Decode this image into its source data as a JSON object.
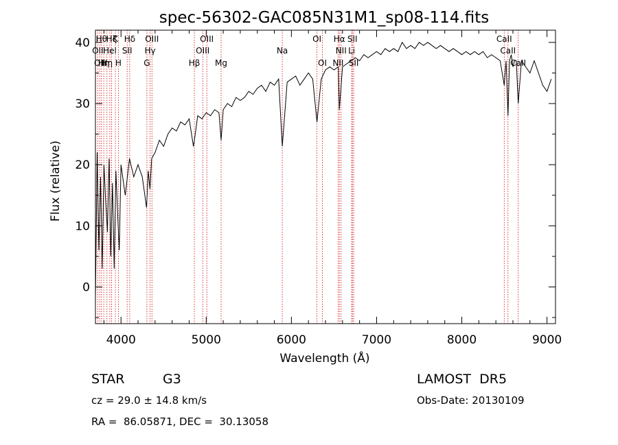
{
  "chart_data": {
    "type": "line",
    "title": "spec-56302-GAC085N31M1_sp08-114.fits",
    "xlabel": "Wavelength (Å)",
    "ylabel": "Flux (relative)",
    "xlim": [
      3700,
      9100
    ],
    "ylim": [
      -6,
      42
    ],
    "x_ticks": [
      "4000",
      "5000",
      "6000",
      "7000",
      "8000",
      "9000"
    ],
    "y_ticks": [
      "0",
      "10",
      "20",
      "30",
      "40"
    ],
    "grid": false,
    "series": [
      {
        "x": [
          3700,
          3720,
          3740,
          3760,
          3780,
          3800,
          3820,
          3840,
          3860,
          3880,
          3900,
          3920,
          3940,
          3960,
          3980,
          4000,
          4050,
          4100,
          4150,
          4200,
          4250,
          4300,
          4320,
          4340,
          4360,
          4400,
          4450,
          4500,
          4550,
          4600,
          4650,
          4700,
          4750,
          4800,
          4850,
          4861,
          4900,
          4950,
          5000,
          5050,
          5100,
          5150,
          5175,
          5200,
          5250,
          5300,
          5350,
          5400,
          5450,
          5500,
          5550,
          5600,
          5650,
          5700,
          5750,
          5800,
          5850,
          5893,
          5950,
          6000,
          6050,
          6100,
          6150,
          6200,
          6250,
          6300,
          6350,
          6400,
          6450,
          6500,
          6550,
          6563,
          6600,
          6650,
          6700,
          6750,
          6800,
          6850,
          6900,
          6950,
          7000,
          7050,
          7100,
          7150,
          7200,
          7250,
          7300,
          7350,
          7400,
          7450,
          7500,
          7550,
          7600,
          7650,
          7700,
          7750,
          7800,
          7850,
          7900,
          7950,
          8000,
          8050,
          8100,
          8150,
          8200,
          8250,
          8300,
          8350,
          8400,
          8450,
          8498,
          8520,
          8542,
          8560,
          8580,
          8600,
          8620,
          8640,
          8662,
          8700,
          8750,
          8800,
          8850,
          8900,
          8950,
          9000,
          9050
        ],
        "y": [
          -2,
          22,
          6,
          18,
          3,
          20,
          14,
          9,
          21,
          5,
          17,
          3,
          19,
          12,
          6,
          20,
          15,
          21,
          18,
          20,
          18,
          13,
          19,
          16,
          21,
          22,
          24,
          23,
          25,
          26,
          25.5,
          27,
          26.5,
          27.5,
          23,
          24,
          28,
          27.5,
          28.5,
          28,
          29,
          28.5,
          24,
          29,
          30,
          29.5,
          31,
          30.5,
          31,
          32,
          31.5,
          32.5,
          33,
          32,
          33.5,
          33,
          34,
          23,
          33.5,
          34,
          34.5,
          33,
          34,
          35,
          34,
          27,
          34,
          35.5,
          36,
          35.5,
          36,
          29,
          36,
          36.5,
          37,
          37.5,
          37,
          38,
          37.5,
          38,
          38.5,
          38,
          39,
          38.5,
          39,
          38.5,
          40,
          39,
          39.5,
          39,
          40,
          39.5,
          40,
          39.5,
          39,
          39.5,
          39,
          38.5,
          39,
          38.5,
          38,
          38.5,
          38,
          38.5,
          38,
          38.5,
          37.5,
          38,
          37.5,
          37,
          33,
          37,
          28,
          37,
          38,
          36,
          37,
          37,
          30,
          37,
          36,
          35,
          37,
          35,
          33,
          32,
          34
        ]
      }
    ],
    "line_markers": [
      {
        "wl": 3727,
        "label": "OII",
        "row": 1
      },
      {
        "wl": 3750,
        "label": "OII",
        "row": 2
      },
      {
        "wl": 3771,
        "label": "Hθ",
        "row": 0
      },
      {
        "wl": 3798,
        "label": "Hη",
        "row": 2
      },
      {
        "wl": 3835,
        "label": "Hη",
        "row": 2
      },
      {
        "wl": 3869,
        "label": "Hel",
        "row": 1
      },
      {
        "wl": 3889,
        "label": "Hζ",
        "row": 0
      },
      {
        "wl": 3934,
        "label": "K",
        "row": 0
      },
      {
        "wl": 3969,
        "label": "H",
        "row": 2
      },
      {
        "wl": 4072,
        "label": "SII",
        "row": 1
      },
      {
        "wl": 4102,
        "label": "Hδ",
        "row": 0
      },
      {
        "wl": 4304,
        "label": "G",
        "row": 2
      },
      {
        "wl": 4341,
        "label": "Hγ",
        "row": 1
      },
      {
        "wl": 4363,
        "label": "OIII",
        "row": 0
      },
      {
        "wl": 4861,
        "label": "Hβ",
        "row": 2
      },
      {
        "wl": 4959,
        "label": "OIII",
        "row": 1
      },
      {
        "wl": 5007,
        "label": "OIII",
        "row": 0
      },
      {
        "wl": 5175,
        "label": "Mg",
        "row": 2
      },
      {
        "wl": 5893,
        "label": "Na",
        "row": 1
      },
      {
        "wl": 6300,
        "label": "OI",
        "row": 0
      },
      {
        "wl": 6364,
        "label": "OI",
        "row": 2
      },
      {
        "wl": 6548,
        "label": "NII",
        "row": 2
      },
      {
        "wl": 6563,
        "label": "Hα",
        "row": 0
      },
      {
        "wl": 6583,
        "label": "NII",
        "row": 1
      },
      {
        "wl": 6707,
        "label": "Li",
        "row": 1
      },
      {
        "wl": 6716,
        "label": "SII",
        "row": 0
      },
      {
        "wl": 6731,
        "label": "SII",
        "row": 2
      },
      {
        "wl": 8498,
        "label": "CaII",
        "row": 0
      },
      {
        "wl": 8542,
        "label": "CaII",
        "row": 1
      },
      {
        "wl": 8662,
        "label": "CaII",
        "row": 2
      }
    ]
  },
  "info": {
    "object_class": "STAR",
    "subclass": "G3",
    "survey": "LAMOST  DR5",
    "redshift": "cz = 29.0 ± 14.8 km/s",
    "obs_date": "Obs-Date: 20130109",
    "coords": "RA =  86.05871, DEC =  30.13058"
  },
  "colors": {
    "spectrum": "#000000",
    "line_markers": "#cc0000",
    "axes": "#000000"
  }
}
